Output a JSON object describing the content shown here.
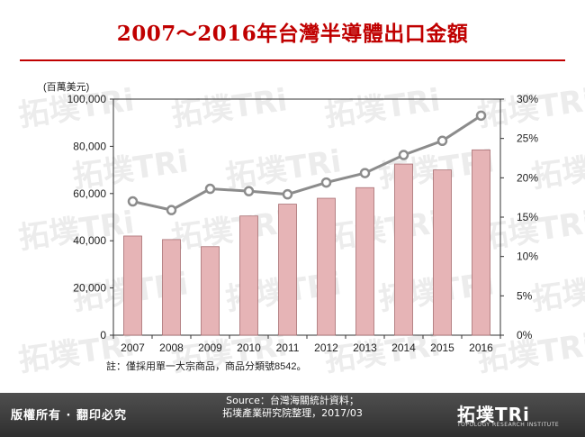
{
  "title": "2007～2016年台灣半導體出口金額",
  "footer": {
    "left_text": "版權所有 · 翻印必究",
    "source_line1": "Source：台灣海關統計資料；",
    "source_line2": "拓墣產業研究院整理，2017/03",
    "logo_name": "拓墣TRi",
    "logo_tagline": "TOPOLOGY RESEARCH INSTITUTE"
  },
  "watermark": "拓墣TRi",
  "chart_data": {
    "type": "bar+line",
    "unit_label": "(百萬美元)",
    "categories": [
      "2007",
      "2008",
      "2009",
      "2010",
      "2011",
      "2012",
      "2013",
      "2014",
      "2015",
      "2016"
    ],
    "bar_values": [
      42000,
      40500,
      37500,
      50500,
      55500,
      58000,
      62500,
      72500,
      70000,
      78500
    ],
    "line_values": [
      17.0,
      15.9,
      18.6,
      18.3,
      17.9,
      19.4,
      20.6,
      22.9,
      24.7,
      27.9
    ],
    "left_ylim": [
      0,
      100000
    ],
    "left_ticks": [
      "0",
      "20,000",
      "40,000",
      "60,000",
      "80,000",
      "100,000"
    ],
    "right_ylim": [
      0,
      30
    ],
    "right_ticks": [
      "0%",
      "5%",
      "10%",
      "15%",
      "20%",
      "25%",
      "30%"
    ],
    "note": "註：僅採用單一大宗商品，商品分類號8542。",
    "colors": {
      "bar_fill": "#e6b4b6",
      "bar_stroke": "#a86e72",
      "line": "#8c8c8c"
    },
    "grid": false
  }
}
